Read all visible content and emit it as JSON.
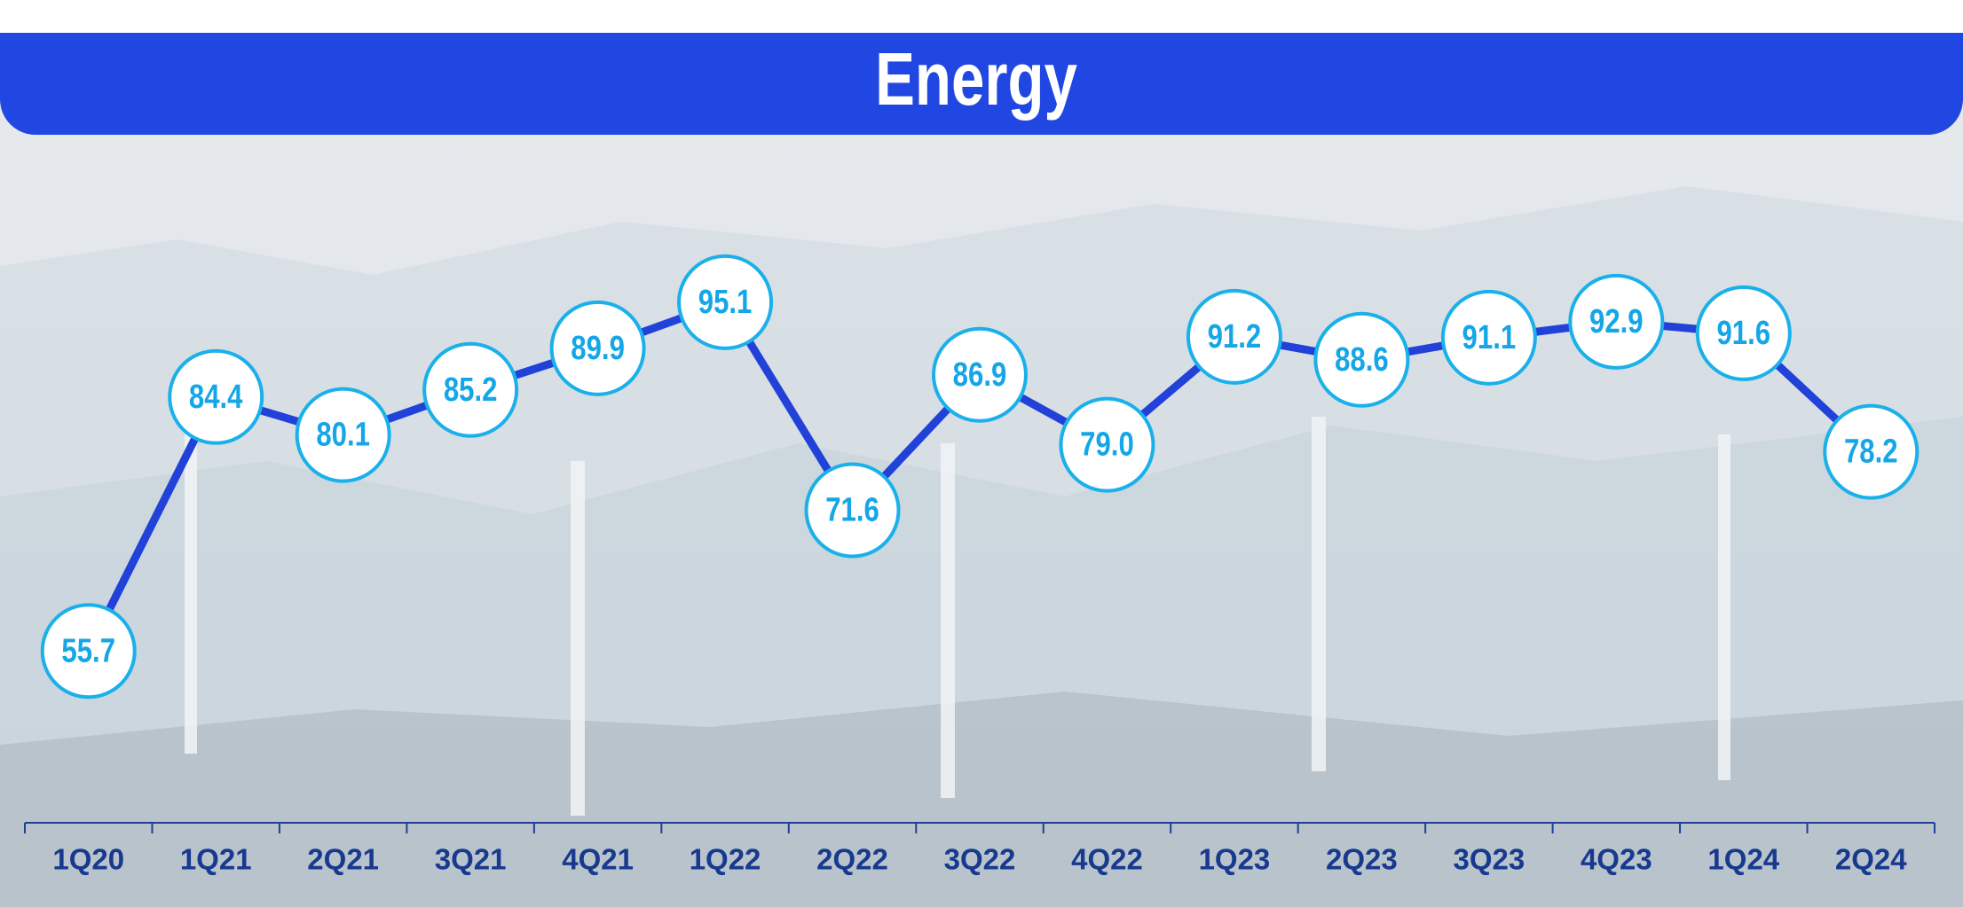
{
  "chart_data": {
    "type": "line",
    "title": "Energy",
    "categories": [
      "1Q20",
      "1Q21",
      "2Q21",
      "3Q21",
      "4Q21",
      "1Q22",
      "2Q22",
      "3Q22",
      "4Q22",
      "1Q23",
      "2Q23",
      "3Q23",
      "4Q23",
      "1Q24",
      "2Q24"
    ],
    "values": [
      55.7,
      84.4,
      80.1,
      85.2,
      89.9,
      95.1,
      71.6,
      86.9,
      79.0,
      91.2,
      88.6,
      91.1,
      92.9,
      91.6,
      78.2
    ],
    "value_labels": [
      "55.7",
      "84.4",
      "80.1",
      "85.2",
      "89.9",
      "95.1",
      "71.6",
      "86.9",
      "79.0",
      "91.2",
      "88.6",
      "91.1",
      "92.9",
      "91.6",
      "78.2"
    ],
    "color": "#2141d9",
    "ylim": [
      40,
      100
    ]
  }
}
